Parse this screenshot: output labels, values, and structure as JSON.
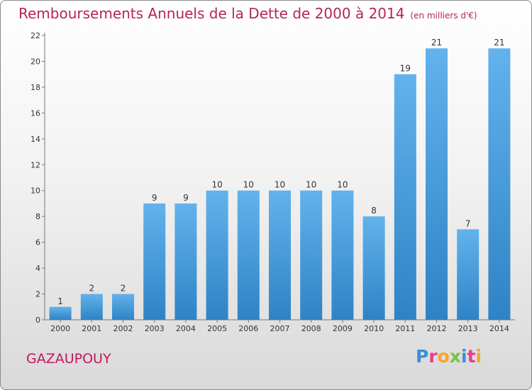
{
  "header": {
    "title": "Remboursements Annuels de la Dette de 2000 à 2014",
    "subtitle": "(en milliers d'€)"
  },
  "footer": {
    "commune": "GAZAUPOUY",
    "brand": "Proxiti",
    "brand_colors": [
      "#3a8fd6",
      "#e83e8c",
      "#f5a623",
      "#7cc242",
      "#3a8fd6",
      "#e83e8c",
      "#f5a623"
    ]
  },
  "chart_data": {
    "type": "bar",
    "title": "Remboursements Annuels de la Dette de 2000 à 2014",
    "subtitle": "(en milliers d'€)",
    "xlabel": "",
    "ylabel": "",
    "categories": [
      "2000",
      "2001",
      "2002",
      "2003",
      "2004",
      "2005",
      "2006",
      "2007",
      "2008",
      "2009",
      "2010",
      "2011",
      "2012",
      "2013",
      "2014"
    ],
    "values": [
      1,
      2,
      2,
      9,
      9,
      10,
      10,
      10,
      10,
      10,
      8,
      19,
      21,
      7,
      21
    ],
    "ylim": [
      0,
      22
    ],
    "yticks": [
      0,
      2,
      4,
      6,
      8,
      10,
      12,
      14,
      16,
      18,
      20,
      22
    ],
    "grid": false,
    "legend": "none",
    "bar_color_light": "#62b2ec",
    "bar_color_dark": "#2f83c5"
  }
}
